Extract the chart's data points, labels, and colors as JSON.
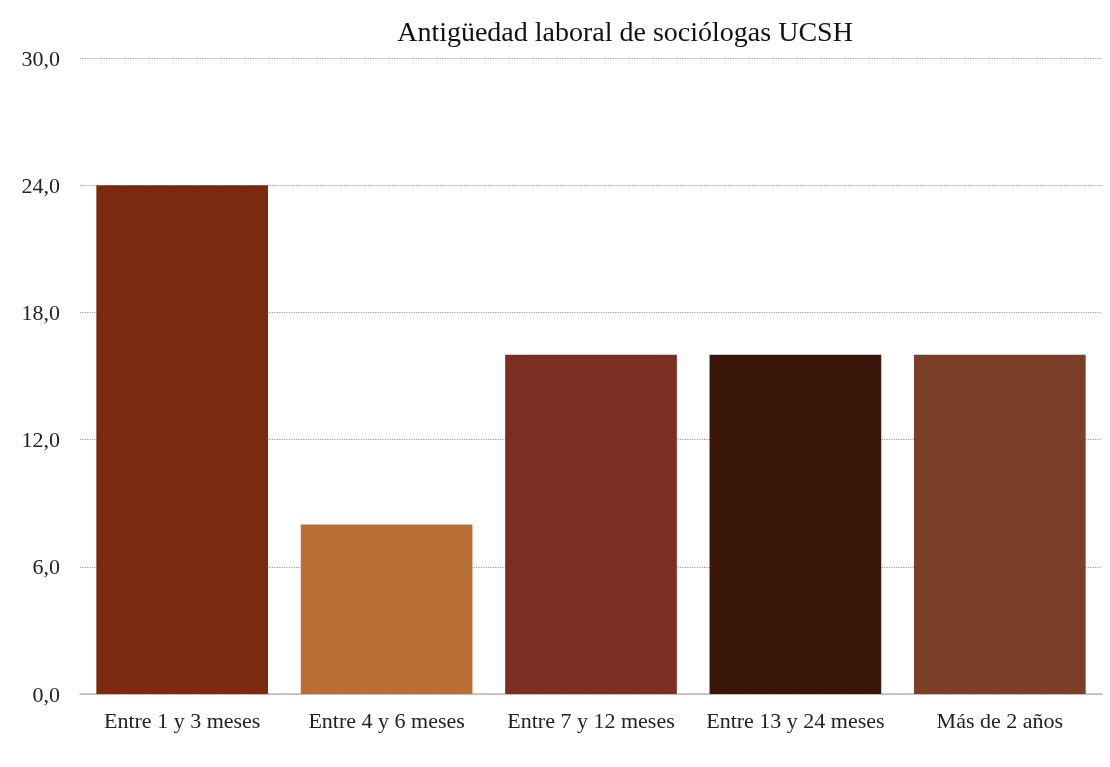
{
  "chart_data": {
    "type": "bar",
    "title": "Antigüedad laboral de sociólogas UCSH",
    "categories": [
      "Entre 1 y 3 meses",
      "Entre 4 y 6 meses",
      "Entre 7 y 12 meses",
      "Entre 13 y 24 meses",
      "Más de 2 años"
    ],
    "values": [
      24,
      8,
      16,
      16,
      16
    ],
    "colors": [
      "#7a2a0e",
      "#b86f35",
      "#7c2e22",
      "#3a160a",
      "#7a3f26"
    ],
    "ylim": [
      0,
      30
    ],
    "yticks": [
      {
        "value": 0,
        "label": "0,0"
      },
      {
        "value": 6,
        "label": "6,0"
      },
      {
        "value": 12,
        "label": "12,0"
      },
      {
        "value": 18,
        "label": "18,0"
      },
      {
        "value": 24,
        "label": "24,0"
      },
      {
        "value": 30,
        "label": "30,0"
      }
    ],
    "grid": "y"
  }
}
